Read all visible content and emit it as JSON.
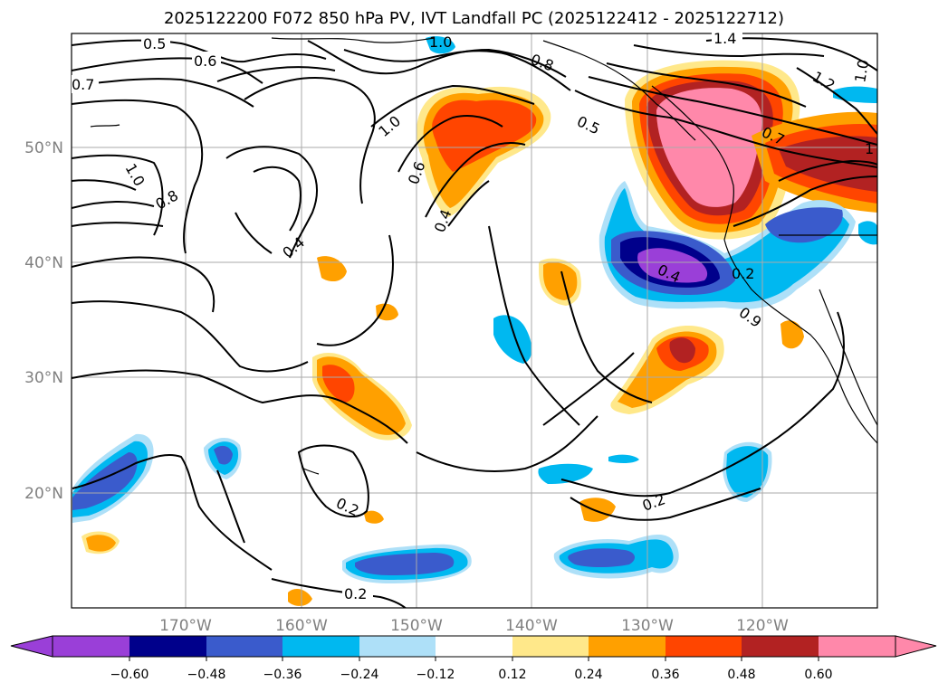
{
  "title": "2025122200 F072 850 hPa PV, IVT Landfall PC (2025122412 - 2025122712)",
  "lat_labels": [
    "50°N",
    "40°N",
    "30°N",
    "20°N"
  ],
  "lon_labels": [
    "170°W",
    "160°W",
    "150°W",
    "140°W",
    "130°W",
    "120°W"
  ],
  "contour_labels": [
    "0.5",
    "0.6",
    "0.7",
    "1.0",
    "0.8",
    "1.0",
    "0.4",
    "1.0",
    "0.6",
    "0.4",
    "0.8",
    "0.5",
    "1.4",
    "1.2",
    "1.0",
    "0.7",
    "1",
    "0.4",
    "0.2",
    "0.9",
    "0.2",
    "0.2",
    "0.2"
  ],
  "colorbar": {
    "ticks": [
      "−0.60",
      "−0.48",
      "−0.36",
      "−0.24",
      "−0.12",
      "0.12",
      "0.24",
      "0.36",
      "0.48",
      "0.60"
    ],
    "colors": [
      "#9a3fd8",
      "#00008b",
      "#3a5bcc",
      "#00b8f0",
      "#aee0f8",
      "#ffffff",
      "#ffe88a",
      "#ffa000",
      "#ff4500",
      "#b22222",
      "#ff88aa"
    ]
  },
  "colors": {
    "grid": "#aaaaaa",
    "contour": "#000000",
    "label_gray": "#808080"
  }
}
